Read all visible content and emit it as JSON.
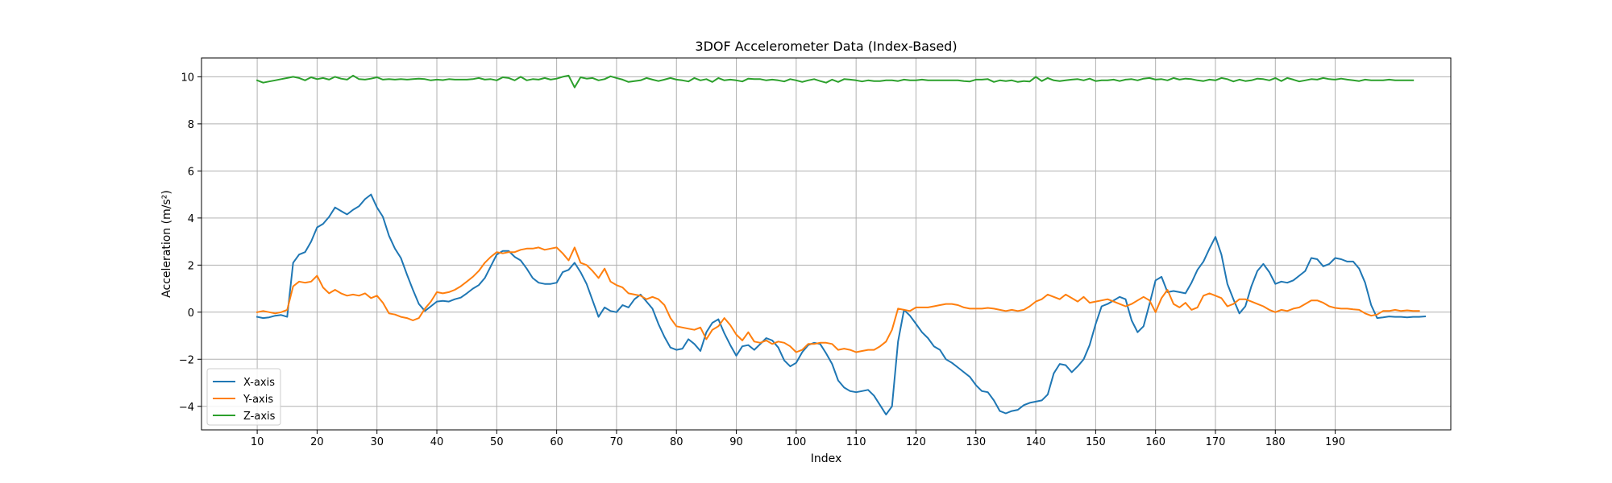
{
  "chart_data": {
    "type": "line",
    "title": "3DOF Accelerometer Data (Index-Based)",
    "xlabel": "Index",
    "ylabel": "Acceleration (m/s²)",
    "xlim": [
      0.7,
      209.3
    ],
    "ylim": [
      -5.0,
      10.8
    ],
    "xticks": [
      10,
      20,
      30,
      40,
      50,
      60,
      70,
      80,
      90,
      100,
      110,
      120,
      130,
      140,
      150,
      160,
      170,
      180,
      190
    ],
    "yticks": [
      -4,
      -2,
      0,
      2,
      4,
      6,
      8,
      10
    ],
    "grid": true,
    "legend_position": "lower-left",
    "x_start": 10,
    "series": [
      {
        "name": "X-axis",
        "color": "#1f77b4",
        "values": [
          -0.2,
          -0.25,
          -0.22,
          -0.15,
          -0.12,
          -0.2,
          2.1,
          2.45,
          2.55,
          3.0,
          3.6,
          3.75,
          4.05,
          4.45,
          4.3,
          4.15,
          4.35,
          4.5,
          4.8,
          5.0,
          4.45,
          4.05,
          3.25,
          2.7,
          2.3,
          1.6,
          0.95,
          0.35,
          0.05,
          0.25,
          0.45,
          0.48,
          0.45,
          0.55,
          0.62,
          0.8,
          1.0,
          1.15,
          1.45,
          1.95,
          2.45,
          2.6,
          2.6,
          2.35,
          2.2,
          1.85,
          1.45,
          1.25,
          1.2,
          1.2,
          1.25,
          1.7,
          1.8,
          2.1,
          1.7,
          1.2,
          0.5,
          -0.2,
          0.2,
          0.05,
          0.0,
          0.3,
          0.2,
          0.55,
          0.75,
          0.45,
          0.15,
          -0.5,
          -1.05,
          -1.5,
          -1.6,
          -1.55,
          -1.15,
          -1.35,
          -1.65,
          -0.85,
          -0.45,
          -0.3,
          -0.9,
          -1.4,
          -1.85,
          -1.45,
          -1.4,
          -1.6,
          -1.35,
          -1.1,
          -1.2,
          -1.5,
          -2.05,
          -2.3,
          -2.15,
          -1.7,
          -1.4,
          -1.3,
          -1.35,
          -1.75,
          -2.2,
          -2.9,
          -3.2,
          -3.35,
          -3.4,
          -3.35,
          -3.3,
          -3.55,
          -3.95,
          -4.35,
          -4.0,
          -1.25,
          0.1,
          -0.15,
          -0.5,
          -0.85,
          -1.1,
          -1.45,
          -1.6,
          -2.0,
          -2.15,
          -2.35,
          -2.55,
          -2.75,
          -3.1,
          -3.35,
          -3.4,
          -3.75,
          -4.2,
          -4.3,
          -4.2,
          -4.15,
          -3.95,
          -3.85,
          -3.8,
          -3.75,
          -3.5,
          -2.6,
          -2.2,
          -2.25,
          -2.55,
          -2.3,
          -2.0,
          -1.4,
          -0.5,
          0.25,
          0.35,
          0.5,
          0.65,
          0.55,
          -0.35,
          -0.85,
          -0.6,
          0.35,
          1.35,
          1.5,
          0.85,
          0.9,
          0.85,
          0.8,
          1.25,
          1.8,
          2.15,
          2.7,
          3.2,
          2.45,
          1.2,
          0.55,
          -0.05,
          0.25,
          1.1,
          1.75,
          2.05,
          1.7,
          1.2,
          1.3,
          1.25,
          1.35,
          1.55,
          1.75,
          2.3,
          2.25,
          1.95,
          2.05,
          2.3,
          2.25,
          2.15,
          2.15,
          1.85,
          1.25,
          0.3,
          -0.25,
          -0.22,
          -0.18,
          -0.2,
          -0.2,
          -0.22,
          -0.2,
          -0.2,
          -0.18
        ]
      },
      {
        "name": "Y-axis",
        "color": "#ff7f0e",
        "values": [
          0.0,
          0.05,
          0.0,
          -0.05,
          0.0,
          0.1,
          1.1,
          1.3,
          1.25,
          1.3,
          1.55,
          1.05,
          0.8,
          0.95,
          0.8,
          0.7,
          0.75,
          0.7,
          0.8,
          0.6,
          0.7,
          0.4,
          -0.05,
          -0.1,
          -0.2,
          -0.25,
          -0.35,
          -0.25,
          0.15,
          0.45,
          0.85,
          0.8,
          0.85,
          0.95,
          1.1,
          1.3,
          1.5,
          1.75,
          2.1,
          2.35,
          2.55,
          2.5,
          2.55,
          2.55,
          2.65,
          2.7,
          2.7,
          2.75,
          2.65,
          2.7,
          2.75,
          2.5,
          2.2,
          2.75,
          2.1,
          2.0,
          1.75,
          1.45,
          1.85,
          1.3,
          1.15,
          1.05,
          0.8,
          0.75,
          0.7,
          0.55,
          0.65,
          0.55,
          0.3,
          -0.25,
          -0.6,
          -0.65,
          -0.7,
          -0.75,
          -0.65,
          -1.15,
          -0.75,
          -0.6,
          -0.25,
          -0.55,
          -0.95,
          -1.2,
          -0.85,
          -1.25,
          -1.3,
          -1.2,
          -1.35,
          -1.25,
          -1.3,
          -1.45,
          -1.7,
          -1.6,
          -1.35,
          -1.35,
          -1.3,
          -1.3,
          -1.35,
          -1.6,
          -1.55,
          -1.6,
          -1.7,
          -1.65,
          -1.6,
          -1.6,
          -1.45,
          -1.25,
          -0.75,
          0.15,
          0.1,
          0.05,
          0.2,
          0.2,
          0.2,
          0.25,
          0.3,
          0.35,
          0.35,
          0.3,
          0.2,
          0.15,
          0.15,
          0.15,
          0.18,
          0.15,
          0.1,
          0.05,
          0.1,
          0.05,
          0.1,
          0.25,
          0.45,
          0.55,
          0.75,
          0.65,
          0.55,
          0.75,
          0.6,
          0.45,
          0.65,
          0.4,
          0.45,
          0.5,
          0.55,
          0.45,
          0.35,
          0.25,
          0.35,
          0.5,
          0.65,
          0.5,
          0.0,
          0.6,
          0.95,
          0.35,
          0.2,
          0.4,
          0.1,
          0.2,
          0.7,
          0.8,
          0.7,
          0.6,
          0.25,
          0.35,
          0.55,
          0.55,
          0.45,
          0.35,
          0.25,
          0.1,
          0.0,
          0.1,
          0.05,
          0.15,
          0.2,
          0.35,
          0.5,
          0.5,
          0.4,
          0.25,
          0.18,
          0.15,
          0.15,
          0.12,
          0.1,
          -0.05,
          -0.15,
          -0.1,
          0.05,
          0.05,
          0.1,
          0.05,
          0.08,
          0.05,
          0.05
        ]
      },
      {
        "name": "Z-axis",
        "color": "#2ca02c",
        "values": [
          9.85,
          9.75,
          9.8,
          9.85,
          9.9,
          9.95,
          10.0,
          9.95,
          9.85,
          9.98,
          9.9,
          9.95,
          9.88,
          10.0,
          9.92,
          9.88,
          10.05,
          9.9,
          9.88,
          9.92,
          9.98,
          9.88,
          9.9,
          9.88,
          9.9,
          9.88,
          9.9,
          9.92,
          9.9,
          9.85,
          9.88,
          9.86,
          9.9,
          9.88,
          9.88,
          9.88,
          9.9,
          9.95,
          9.88,
          9.9,
          9.85,
          9.98,
          9.95,
          9.85,
          10.0,
          9.85,
          9.9,
          9.88,
          9.95,
          9.88,
          9.92,
          10.0,
          10.05,
          9.55,
          9.98,
          9.92,
          9.95,
          9.85,
          9.9,
          10.02,
          9.95,
          9.88,
          9.78,
          9.82,
          9.85,
          9.95,
          9.88,
          9.82,
          9.88,
          9.95,
          9.88,
          9.85,
          9.8,
          9.95,
          9.85,
          9.9,
          9.78,
          9.95,
          9.85,
          9.88,
          9.85,
          9.8,
          9.92,
          9.9,
          9.9,
          9.85,
          9.88,
          9.85,
          9.8,
          9.9,
          9.85,
          9.78,
          9.85,
          9.9,
          9.82,
          9.75,
          9.88,
          9.78,
          9.9,
          9.88,
          9.85,
          9.8,
          9.85,
          9.82,
          9.82,
          9.85,
          9.85,
          9.82,
          9.88,
          9.85,
          9.85,
          9.88,
          9.85,
          9.85,
          9.85,
          9.85,
          9.85,
          9.85,
          9.82,
          9.8,
          9.88,
          9.88,
          9.9,
          9.78,
          9.85,
          9.82,
          9.85,
          9.78,
          9.82,
          9.8,
          10.0,
          9.82,
          9.95,
          9.85,
          9.82,
          9.85,
          9.88,
          9.9,
          9.85,
          9.92,
          9.82,
          9.85,
          9.85,
          9.88,
          9.82,
          9.88,
          9.9,
          9.85,
          9.92,
          9.95,
          9.88,
          9.9,
          9.85,
          9.95,
          9.88,
          9.92,
          9.9,
          9.85,
          9.82,
          9.88,
          9.85,
          9.95,
          9.9,
          9.8,
          9.88,
          9.82,
          9.85,
          9.92,
          9.9,
          9.85,
          9.95,
          9.82,
          9.95,
          9.88,
          9.8,
          9.85,
          9.9,
          9.88,
          9.95,
          9.9,
          9.88,
          9.92,
          9.88,
          9.85,
          9.82,
          9.88,
          9.85,
          9.85,
          9.85,
          9.88,
          9.85,
          9.85,
          9.85,
          9.85
        ]
      }
    ]
  }
}
